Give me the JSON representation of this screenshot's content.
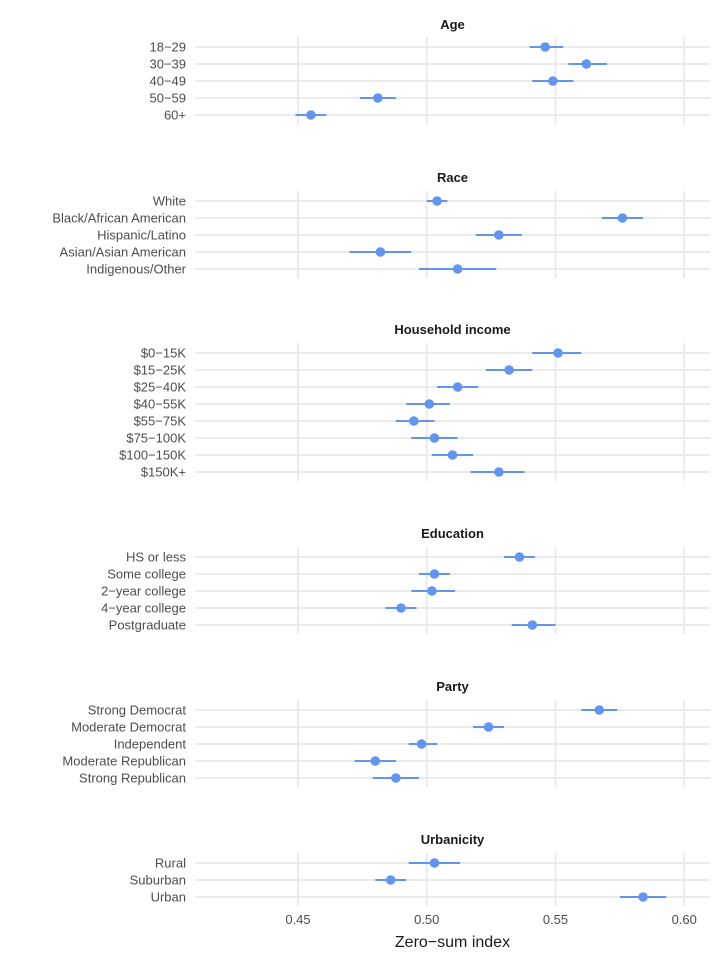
{
  "chart_data": {
    "type": "scatter",
    "subtype": "point-range (dot with confidence interval), faceted",
    "xlabel": "Zero−sum index",
    "xlim": [
      0.41,
      0.61
    ],
    "x_ticks": [
      0.45,
      0.5,
      0.55,
      0.6
    ],
    "x_tick_labels": [
      "0.45",
      "0.50",
      "0.55",
      "0.60"
    ],
    "grid": true,
    "color": "#6495ED",
    "panels": [
      {
        "title": "Age",
        "categories": [
          "18−29",
          "30−39",
          "40−49",
          "50−59",
          "60+"
        ],
        "estimates": [
          0.546,
          0.562,
          0.549,
          0.481,
          0.455
        ],
        "ci_low": [
          0.54,
          0.555,
          0.541,
          0.474,
          0.449
        ],
        "ci_high": [
          0.553,
          0.57,
          0.557,
          0.488,
          0.461
        ]
      },
      {
        "title": "Race",
        "categories": [
          "White",
          "Black/African American",
          "Hispanic/Latino",
          "Asian/Asian American",
          "Indigenous/Other"
        ],
        "estimates": [
          0.504,
          0.576,
          0.528,
          0.482,
          0.512
        ],
        "ci_low": [
          0.5,
          0.568,
          0.519,
          0.47,
          0.497
        ],
        "ci_high": [
          0.508,
          0.584,
          0.537,
          0.494,
          0.527
        ]
      },
      {
        "title": "Household income",
        "categories": [
          "$0−15K",
          "$15−25K",
          "$25−40K",
          "$40−55K",
          "$55−75K",
          "$75−100K",
          "$100−150K",
          "$150K+"
        ],
        "estimates": [
          0.551,
          0.532,
          0.512,
          0.501,
          0.495,
          0.503,
          0.51,
          0.528
        ],
        "ci_low": [
          0.541,
          0.523,
          0.504,
          0.492,
          0.488,
          0.494,
          0.502,
          0.517
        ],
        "ci_high": [
          0.56,
          0.541,
          0.52,
          0.509,
          0.503,
          0.512,
          0.518,
          0.538
        ]
      },
      {
        "title": "Education",
        "categories": [
          "HS or less",
          "Some college",
          "2−year college",
          "4−year college",
          "Postgraduate"
        ],
        "estimates": [
          0.536,
          0.503,
          0.502,
          0.49,
          0.541
        ],
        "ci_low": [
          0.53,
          0.497,
          0.494,
          0.484,
          0.533
        ],
        "ci_high": [
          0.542,
          0.509,
          0.511,
          0.496,
          0.55
        ]
      },
      {
        "title": "Party",
        "categories": [
          "Strong Democrat",
          "Moderate Democrat",
          "Independent",
          "Moderate Republican",
          "Strong Republican"
        ],
        "estimates": [
          0.567,
          0.524,
          0.498,
          0.48,
          0.488
        ],
        "ci_low": [
          0.56,
          0.518,
          0.493,
          0.472,
          0.479
        ],
        "ci_high": [
          0.574,
          0.53,
          0.504,
          0.488,
          0.497
        ]
      },
      {
        "title": "Urbanicity",
        "categories": [
          "Rural",
          "Suburban",
          "Urban"
        ],
        "estimates": [
          0.503,
          0.486,
          0.584
        ],
        "ci_low": [
          0.493,
          0.48,
          0.575
        ],
        "ci_high": [
          0.513,
          0.492,
          0.593
        ]
      }
    ]
  }
}
